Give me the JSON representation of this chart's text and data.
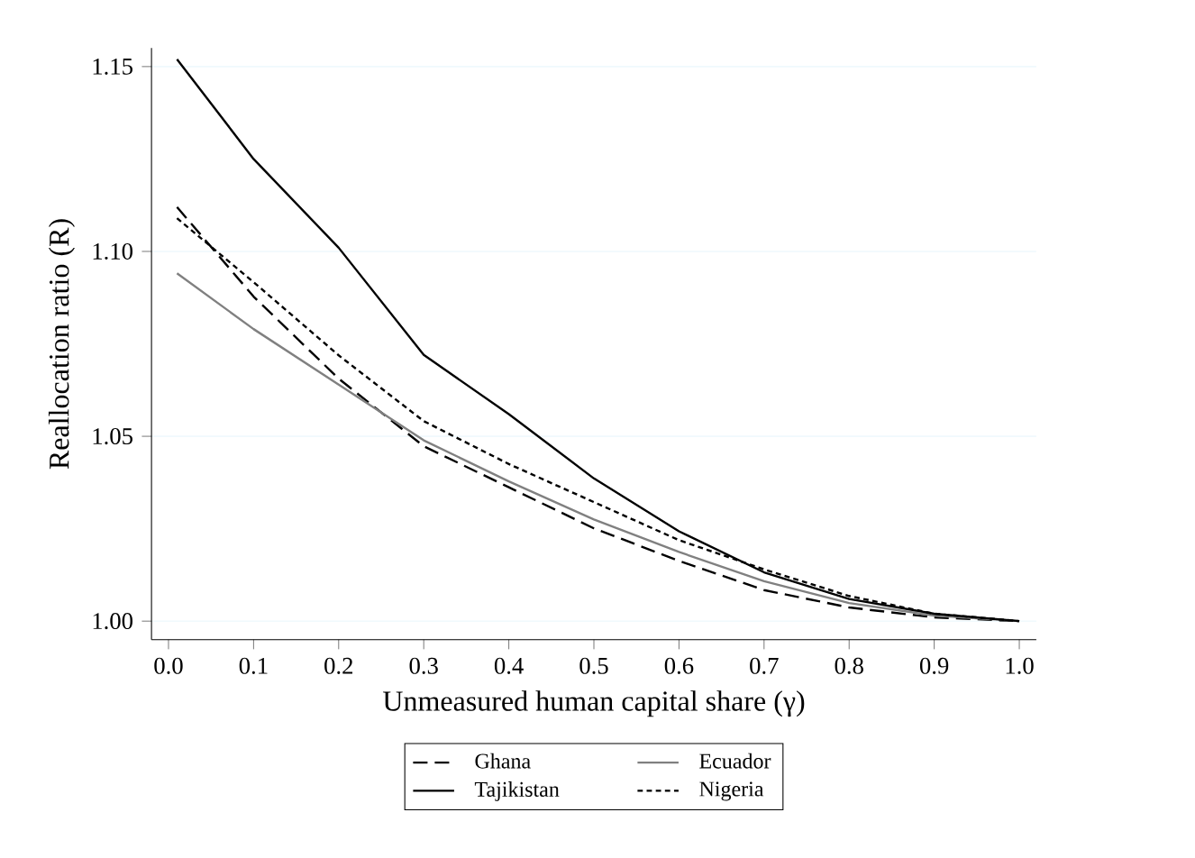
{
  "chart_data": {
    "type": "line",
    "xlabel": "Unmeasured human capital share (γ)",
    "ylabel": "Reallocation ratio (R)",
    "x": [
      0.01,
      0.1,
      0.2,
      0.3,
      0.4,
      0.5,
      0.6,
      0.7,
      0.8,
      0.9,
      1.0
    ],
    "series": [
      {
        "name": "Ghana",
        "color": "#000000",
        "line_style": "dashed",
        "values": [
          1.112,
          1.0878,
          1.0656,
          1.0473,
          1.0362,
          1.0251,
          1.0163,
          1.0084,
          1.0037,
          1.001,
          1.0
        ]
      },
      {
        "name": "Ecuador",
        "color": "#808080",
        "line_style": "solid",
        "values": [
          1.0941,
          1.079,
          1.064,
          1.0489,
          1.0378,
          1.0275,
          1.0187,
          1.0108,
          1.0049,
          1.0015,
          1.0
        ]
      },
      {
        "name": "Tajikistan",
        "color": "#000000",
        "line_style": "solid",
        "values": [
          1.152,
          1.125,
          1.101,
          1.072,
          1.056,
          1.0386,
          1.0243,
          1.0132,
          1.006,
          1.002,
          1.0
        ]
      },
      {
        "name": "Nigeria",
        "color": "#000000",
        "line_style": "dotted",
        "values": [
          1.109,
          1.0917,
          1.0719,
          1.0541,
          1.0425,
          1.0322,
          1.0219,
          1.014,
          1.0068,
          1.002,
          1.0
        ]
      }
    ],
    "xlim": [
      -0.02,
      1.02
    ],
    "ylim": [
      0.995,
      1.155
    ],
    "xticks": [
      {
        "value": 0,
        "label": "0.0"
      },
      0.1,
      0.2,
      0.3,
      0.4,
      0.5,
      0.6,
      0.7,
      0.8,
      0.9,
      {
        "value": 1,
        "label": "1.0"
      }
    ],
    "yticks": [
      {
        "value": 1,
        "label": "1.00"
      },
      {
        "value": 1.05,
        "label": "1.05"
      },
      {
        "value": 1.1,
        "label": "1.10"
      },
      {
        "value": 1.15,
        "label": "1.15"
      }
    ],
    "grid": "y",
    "legend": "bottom",
    "marker": "none"
  }
}
